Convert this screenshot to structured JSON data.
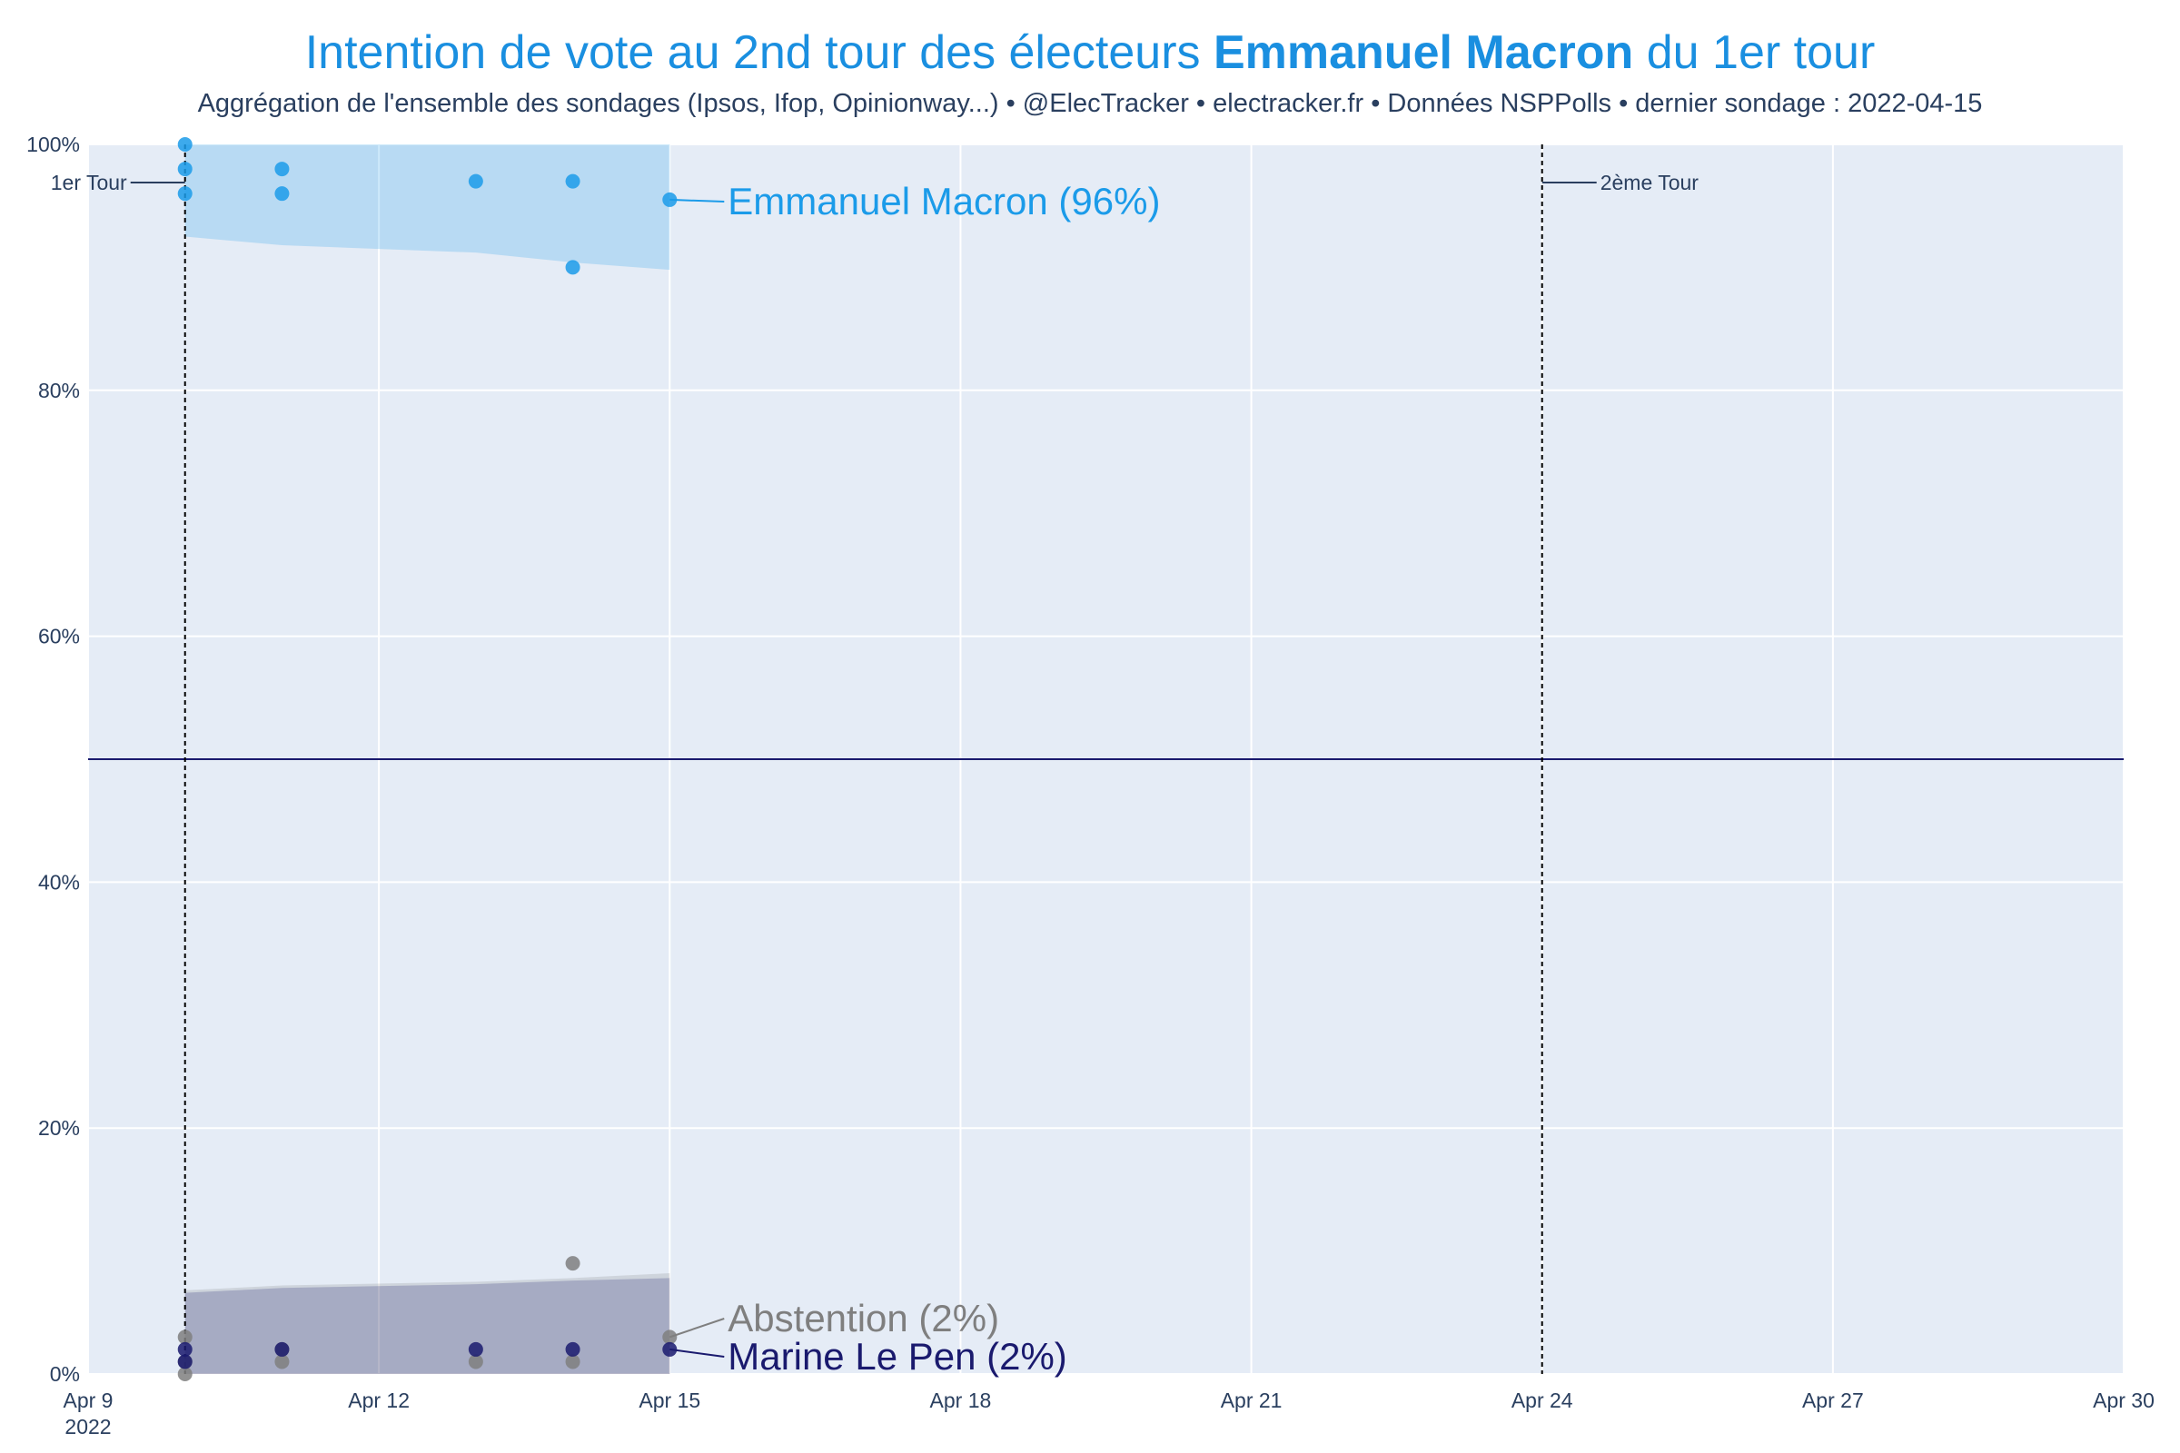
{
  "title": {
    "prefix": "Intention de vote au 2nd tour des électeurs ",
    "bold": "Emmanuel Macron",
    "suffix": " du 1er tour"
  },
  "subtitle": "Aggrégation de l'ensemble des sondages (Ipsos, Ifop, Opinionway...) • @ElecTracker • electracker.fr • Données NSPPolls • dernier sondage : 2022-04-15",
  "colors": {
    "macron": "#1b9be9",
    "lepen": "#1a1a6e",
    "abstention": "#7f7f7f",
    "plot_bg": "#e5ecf6"
  },
  "chart_data": {
    "type": "scatter",
    "x_range": [
      "2022-04-09",
      "2022-04-30"
    ],
    "ylim": [
      0,
      100
    ],
    "y_ticks": [
      "0%",
      "20%",
      "40%",
      "60%",
      "80%",
      "100%"
    ],
    "y_tick_values": [
      0,
      20,
      40,
      60,
      80,
      100
    ],
    "x_ticks": [
      {
        "date": "2022-04-09",
        "label": "Apr 9",
        "sub": "2022"
      },
      {
        "date": "2022-04-12",
        "label": "Apr 12"
      },
      {
        "date": "2022-04-15",
        "label": "Apr 15"
      },
      {
        "date": "2022-04-18",
        "label": "Apr 18"
      },
      {
        "date": "2022-04-21",
        "label": "Apr 21"
      },
      {
        "date": "2022-04-24",
        "label": "Apr 24"
      },
      {
        "date": "2022-04-27",
        "label": "Apr 27"
      },
      {
        "date": "2022-04-30",
        "label": "Apr 30"
      }
    ],
    "grid": true,
    "hline": 50,
    "vlines": [
      {
        "date": "2022-04-10",
        "label": "1er Tour",
        "side": "left"
      },
      {
        "date": "2022-04-24",
        "label": "2ème Tour",
        "side": "right"
      }
    ],
    "series": [
      {
        "name": "Emmanuel Macron",
        "end_label": "Emmanuel Macron (96%)",
        "color": "#1b9be9",
        "band": {
          "x": [
            "2022-04-10",
            "2022-04-11",
            "2022-04-13",
            "2022-04-14",
            "2022-04-15"
          ],
          "lower": [
            92.5,
            91.8,
            91.2,
            90.4,
            89.8
          ],
          "upper": [
            100,
            100,
            100,
            100,
            100
          ]
        },
        "points": [
          {
            "x": "2022-04-10",
            "y": 100
          },
          {
            "x": "2022-04-10",
            "y": 98
          },
          {
            "x": "2022-04-10",
            "y": 96
          },
          {
            "x": "2022-04-11",
            "y": 98
          },
          {
            "x": "2022-04-11",
            "y": 96
          },
          {
            "x": "2022-04-13",
            "y": 97
          },
          {
            "x": "2022-04-14",
            "y": 97
          },
          {
            "x": "2022-04-14",
            "y": 90
          },
          {
            "x": "2022-04-15",
            "y": 95.5
          }
        ]
      },
      {
        "name": "Abstention",
        "end_label": "Abstention (2%)",
        "color": "#7f7f7f",
        "band": {
          "x": [
            "2022-04-10",
            "2022-04-11",
            "2022-04-13",
            "2022-04-14",
            "2022-04-15"
          ],
          "lower": [
            0,
            0,
            0,
            0,
            0
          ],
          "upper": [
            6.8,
            7.2,
            7.5,
            7.8,
            8.2
          ]
        },
        "points": [
          {
            "x": "2022-04-10",
            "y": 3
          },
          {
            "x": "2022-04-10",
            "y": 1
          },
          {
            "x": "2022-04-10",
            "y": 0
          },
          {
            "x": "2022-04-11",
            "y": 2
          },
          {
            "x": "2022-04-11",
            "y": 1
          },
          {
            "x": "2022-04-13",
            "y": 1
          },
          {
            "x": "2022-04-14",
            "y": 9
          },
          {
            "x": "2022-04-14",
            "y": 1
          },
          {
            "x": "2022-04-15",
            "y": 3
          }
        ]
      },
      {
        "name": "Marine Le Pen",
        "end_label": "Marine Le Pen (2%)",
        "color": "#1a1a6e",
        "band": {
          "x": [
            "2022-04-10",
            "2022-04-11",
            "2022-04-13",
            "2022-04-14",
            "2022-04-15"
          ],
          "lower": [
            0,
            0,
            0,
            0,
            0
          ],
          "upper": [
            6.6,
            7.0,
            7.3,
            7.6,
            7.8
          ]
        },
        "points": [
          {
            "x": "2022-04-10",
            "y": 2
          },
          {
            "x": "2022-04-10",
            "y": 1
          },
          {
            "x": "2022-04-11",
            "y": 2
          },
          {
            "x": "2022-04-13",
            "y": 2
          },
          {
            "x": "2022-04-14",
            "y": 2
          },
          {
            "x": "2022-04-15",
            "y": 2
          }
        ]
      }
    ]
  }
}
